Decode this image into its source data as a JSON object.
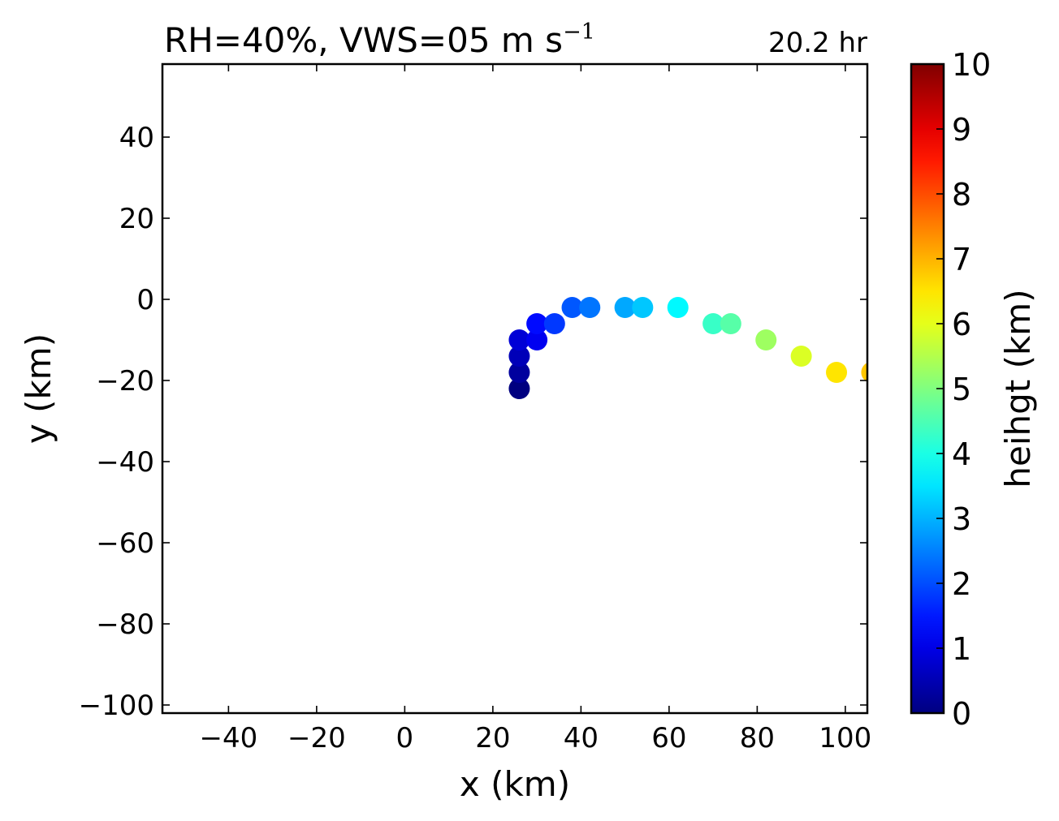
{
  "chart_data": {
    "type": "scatter",
    "title": {
      "main": "RH=40%, VWS=05 m s",
      "superscript": "−1",
      "time_label": "20.2 hr",
      "time_label_color": "#0000ff"
    },
    "xlabel": "x (km)",
    "ylabel": "y (km)",
    "xlim": [
      -55,
      105
    ],
    "ylim": [
      -102,
      58
    ],
    "x_ticks": [
      -40,
      -20,
      0,
      20,
      40,
      60,
      80,
      100
    ],
    "y_ticks": [
      40,
      20,
      0,
      -20,
      -40,
      -60,
      -80,
      -100
    ],
    "colorbar": {
      "label": "heihgt (km)",
      "range": [
        0,
        10
      ],
      "ticks": [
        0,
        1,
        2,
        3,
        4,
        5,
        6,
        7,
        8,
        9,
        10
      ],
      "colormap": "jet"
    },
    "grid": false,
    "points": [
      {
        "x": 26,
        "y": -22,
        "height": 0.0
      },
      {
        "x": 26,
        "y": -18,
        "height": 0.3
      },
      {
        "x": 26,
        "y": -14,
        "height": 0.55
      },
      {
        "x": 26,
        "y": -10,
        "height": 0.85
      },
      {
        "x": 30,
        "y": -10,
        "height": 1.1
      },
      {
        "x": 30,
        "y": -6,
        "height": 1.35
      },
      {
        "x": 34,
        "y": -6,
        "height": 1.8
      },
      {
        "x": 38,
        "y": -2,
        "height": 2.1
      },
      {
        "x": 42,
        "y": -2,
        "height": 2.4
      },
      {
        "x": 50,
        "y": -2,
        "height": 2.9
      },
      {
        "x": 54,
        "y": -2,
        "height": 3.2
      },
      {
        "x": 62,
        "y": -2,
        "height": 3.7
      },
      {
        "x": 70,
        "y": -6,
        "height": 4.3
      },
      {
        "x": 74,
        "y": -6,
        "height": 4.6
      },
      {
        "x": 82,
        "y": -10,
        "height": 5.3
      },
      {
        "x": 90,
        "y": -14,
        "height": 5.9
      },
      {
        "x": 98,
        "y": -18,
        "height": 6.5
      },
      {
        "x": 106,
        "y": -18,
        "height": 6.8
      }
    ]
  }
}
